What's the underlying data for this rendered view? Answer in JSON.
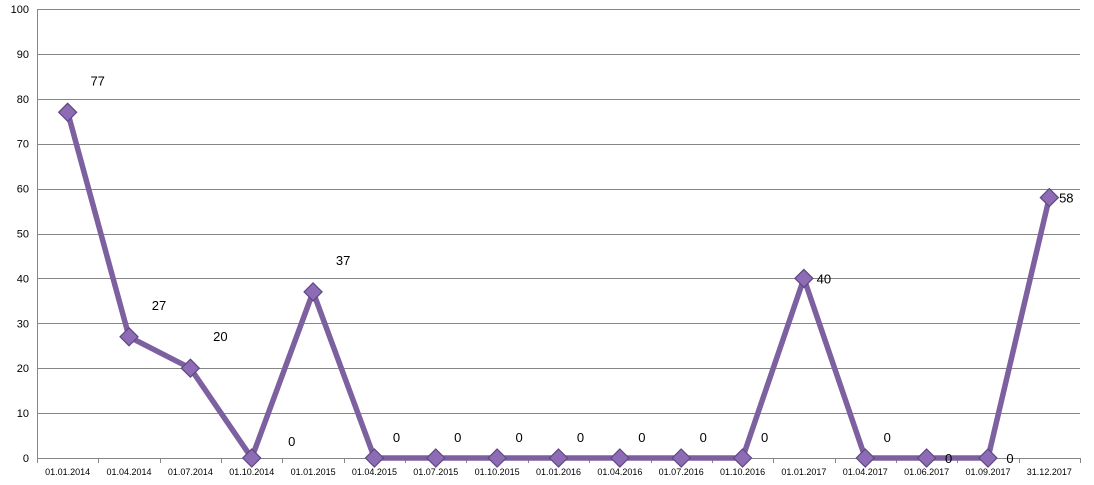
{
  "chart_data": {
    "type": "line",
    "title": "",
    "xlabel": "",
    "ylabel": "",
    "ylim": [
      0,
      100
    ],
    "y_ticks": [
      0,
      10,
      20,
      30,
      40,
      50,
      60,
      70,
      80,
      90,
      100
    ],
    "grid": true,
    "legend": "none",
    "marker": "diamond",
    "colors": {
      "line": "#7D60A0",
      "marker_fill": "#8D6BB5",
      "marker_edge": "#5E4780",
      "grid": "#868686"
    },
    "categories": [
      "01.01.2014",
      "01.04.2014",
      "01.07.2014",
      "01.10.2014",
      "01.01.2015",
      "01.04.2015",
      "01.07.2015",
      "01.10.2015",
      "01.01.2016",
      "01.04.2016",
      "01.07.2016",
      "01.10.2016",
      "01.01.2017",
      "01.04.2017",
      "01.06.2017",
      "01.09.2017",
      "31.12.2017"
    ],
    "series": [
      {
        "values": [
          77,
          27,
          20,
          0,
          37,
          0,
          0,
          0,
          0,
          0,
          0,
          0,
          40,
          0,
          0,
          0,
          58
        ]
      }
    ],
    "data_labels": [
      "77",
      "27",
      "20",
      "0",
      "37",
      "0",
      "0",
      "0",
      "0",
      "0",
      "0",
      "0",
      "40",
      "0",
      "0",
      "0",
      "58"
    ]
  }
}
